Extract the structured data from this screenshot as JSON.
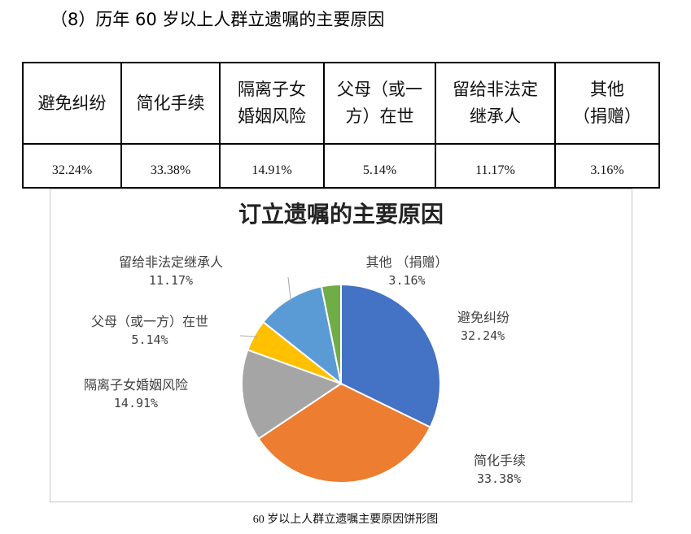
{
  "heading": "（8）历年 60 岁以上人群立遗嘱的主要原因",
  "table": {
    "headers": [
      [
        "避免纠纷"
      ],
      [
        "简化手续"
      ],
      [
        "隔离子女",
        "婚姻风险"
      ],
      [
        "父母（或一",
        "方）在世"
      ],
      [
        "留给非法定",
        "继承人"
      ],
      [
        "其他",
        "（捐赠）"
      ]
    ],
    "values": [
      "32.24%",
      "33.38%",
      "14.91%",
      "5.14%",
      "11.17%",
      "3.16%"
    ]
  },
  "chart_data": {
    "type": "pie",
    "title": "订立遗嘱的主要原因",
    "slices": [
      {
        "label": "避免纠纷",
        "value": 32.24,
        "value_label": "32.24%",
        "color": "#4472c4"
      },
      {
        "label": "简化手续",
        "value": 33.38,
        "value_label": "33.38%",
        "color": "#ed7d31"
      },
      {
        "label": "隔离子女婚姻风险",
        "value": 14.91,
        "value_label": "14.91%",
        "color": "#a5a5a5"
      },
      {
        "label": "父母（或一方）在世",
        "value": 5.14,
        "value_label": "5.14%",
        "color": "#ffc000"
      },
      {
        "label": "留给非法定继承人",
        "value": 11.17,
        "value_label": "11.17%",
        "color": "#5b9bd5"
      },
      {
        "label": "其他 （捐赠）",
        "value": 3.16,
        "value_label": "3.16%",
        "color": "#70ad47"
      }
    ],
    "start": "12 o'clock",
    "direction": "clockwise",
    "legend": "none (data labels with leader lines)"
  },
  "caption": "60 岁以上人群立遗嘱主要原因饼形图"
}
